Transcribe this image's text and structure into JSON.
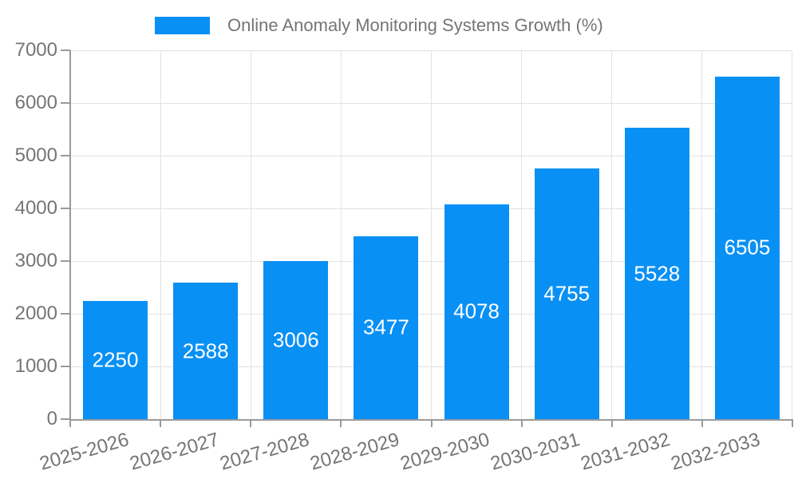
{
  "chart_data": {
    "type": "bar",
    "title": "Online Anomaly Monitoring Systems Growth (%)",
    "legend_position": "top",
    "legend_entries": [
      "Online Anomaly Monitoring Systems Growth (%)"
    ],
    "categories": [
      "2025-2026",
      "2026-2027",
      "2027-2028",
      "2028-2029",
      "2029-2030",
      "2030-2031",
      "2031-2032",
      "2032-2033"
    ],
    "series": [
      {
        "name": "Online Anomaly Monitoring Systems Growth (%)",
        "values": [
          2250,
          2588,
          3006,
          3477,
          4078,
          4755,
          5528,
          6505
        ]
      }
    ],
    "bar_value_labels": [
      "2250",
      "2588",
      "3006",
      "3477",
      "4078",
      "4755",
      "5528",
      "6505"
    ],
    "xlabel": "",
    "ylabel": "",
    "ylim": [
      0,
      7000
    ],
    "y_ticks": [
      0,
      1000,
      2000,
      3000,
      4000,
      5000,
      6000,
      7000
    ],
    "grid": true,
    "x_tick_rotation_deg": -16,
    "colors": {
      "bar": "#0990f5",
      "bar_label_text": "#ffffff",
      "tick_text": "#757575",
      "title_text": "#757575",
      "gridline": "#e2e2e2",
      "axis_line": "#9a9a9a",
      "background": "#ffffff"
    }
  }
}
